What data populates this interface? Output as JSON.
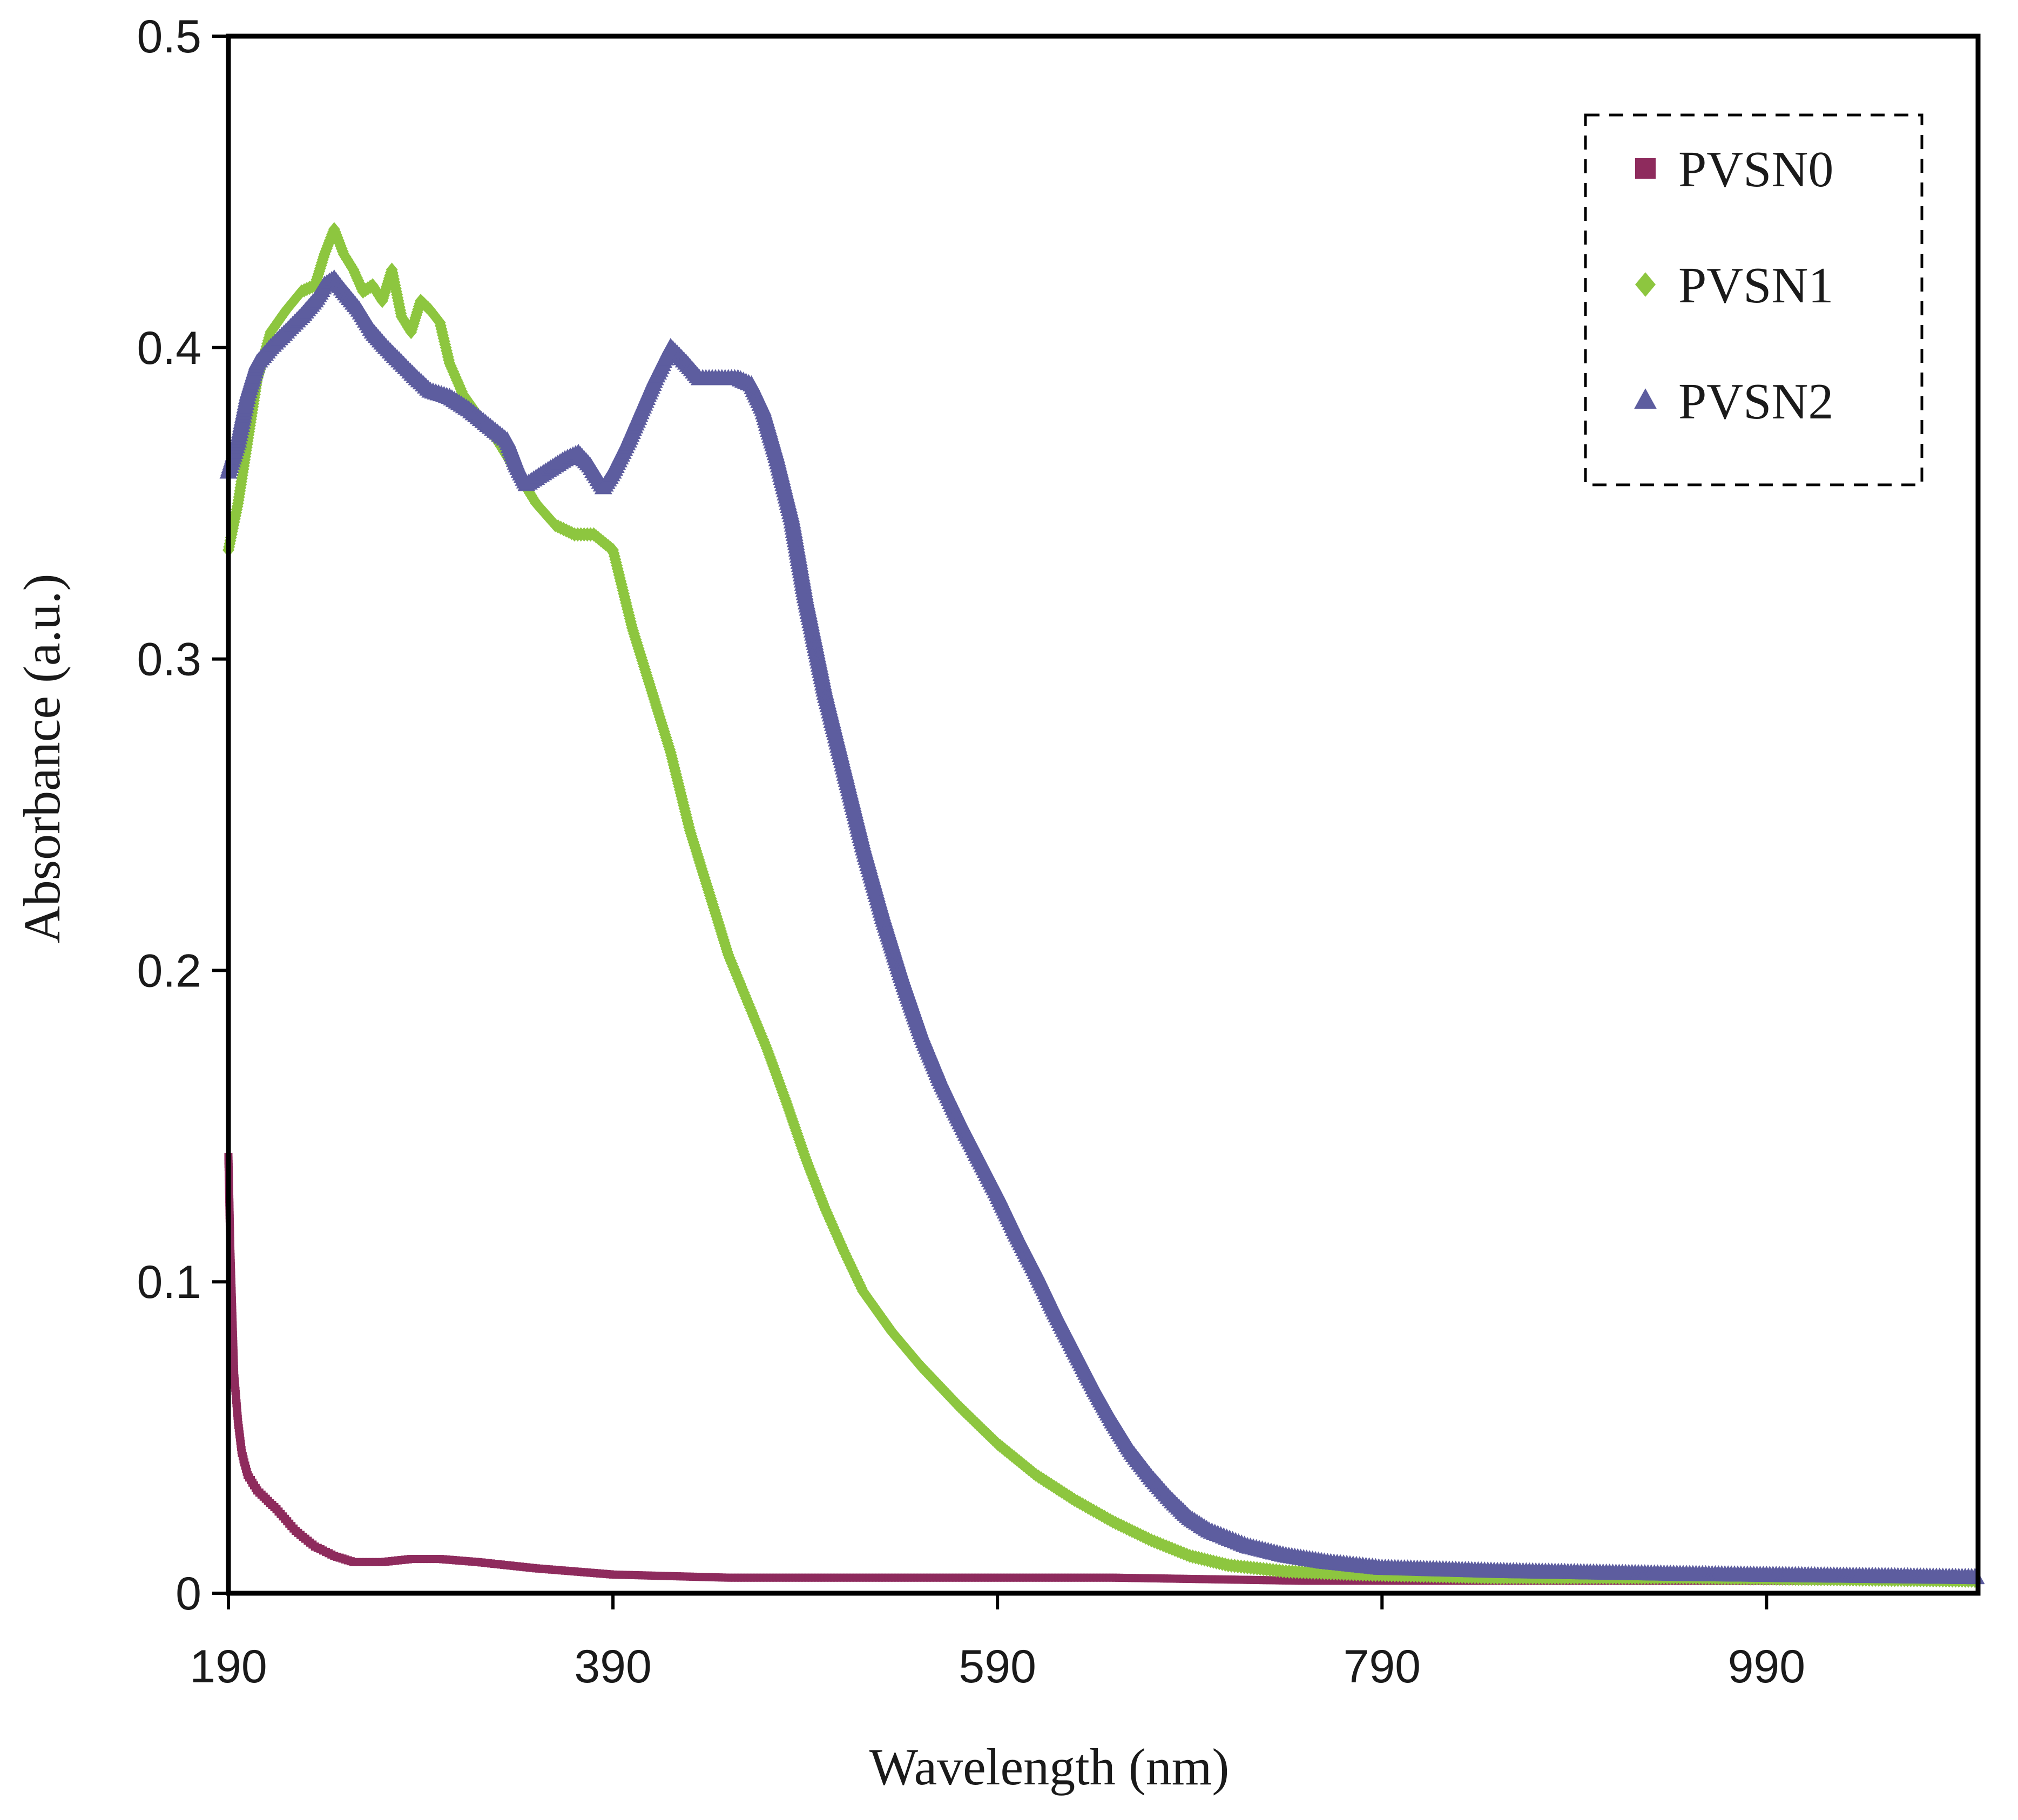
{
  "chart_data": {
    "type": "scatter",
    "title": "",
    "xlabel": "Wavelength (nm)",
    "ylabel": "Absorbance (a.u.)",
    "xlim": [
      190,
      1100
    ],
    "ylim": [
      0,
      0.5
    ],
    "x_ticks": [
      "190",
      "390",
      "590",
      "790",
      "990"
    ],
    "y_ticks": [
      "0",
      "0.1",
      "0.2",
      "0.3",
      "0.4",
      "0.5"
    ],
    "grid": false,
    "legend_position": "top-right",
    "series": [
      {
        "name": "PVSN0",
        "color": "#8e2b5d",
        "marker": "square",
        "points": [
          [
            190,
            0.14
          ],
          [
            191,
            0.11
          ],
          [
            192,
            0.09
          ],
          [
            193,
            0.07
          ],
          [
            195,
            0.055
          ],
          [
            197,
            0.045
          ],
          [
            200,
            0.038
          ],
          [
            205,
            0.033
          ],
          [
            215,
            0.027
          ],
          [
            225,
            0.02
          ],
          [
            235,
            0.015
          ],
          [
            245,
            0.012
          ],
          [
            255,
            0.01
          ],
          [
            270,
            0.01
          ],
          [
            285,
            0.011
          ],
          [
            300,
            0.011
          ],
          [
            320,
            0.01
          ],
          [
            350,
            0.008
          ],
          [
            390,
            0.006
          ],
          [
            450,
            0.005
          ],
          [
            550,
            0.005
          ],
          [
            650,
            0.005
          ],
          [
            750,
            0.004
          ],
          [
            850,
            0.004
          ],
          [
            950,
            0.004
          ],
          [
            1100,
            0.004
          ]
        ]
      },
      {
        "name": "PVSN1",
        "color": "#8dc63f",
        "marker": "diamond",
        "points": [
          [
            190,
            0.335
          ],
          [
            195,
            0.35
          ],
          [
            200,
            0.37
          ],
          [
            205,
            0.39
          ],
          [
            212,
            0.405
          ],
          [
            220,
            0.412
          ],
          [
            228,
            0.418
          ],
          [
            235,
            0.42
          ],
          [
            240,
            0.43
          ],
          [
            245,
            0.438
          ],
          [
            250,
            0.43
          ],
          [
            255,
            0.425
          ],
          [
            260,
            0.418
          ],
          [
            265,
            0.42
          ],
          [
            270,
            0.415
          ],
          [
            275,
            0.425
          ],
          [
            280,
            0.41
          ],
          [
            285,
            0.405
          ],
          [
            290,
            0.415
          ],
          [
            295,
            0.412
          ],
          [
            300,
            0.408
          ],
          [
            305,
            0.395
          ],
          [
            312,
            0.385
          ],
          [
            320,
            0.378
          ],
          [
            330,
            0.37
          ],
          [
            340,
            0.36
          ],
          [
            350,
            0.35
          ],
          [
            360,
            0.343
          ],
          [
            370,
            0.34
          ],
          [
            380,
            0.34
          ],
          [
            390,
            0.335
          ],
          [
            400,
            0.31
          ],
          [
            410,
            0.29
          ],
          [
            420,
            0.27
          ],
          [
            430,
            0.245
          ],
          [
            440,
            0.225
          ],
          [
            450,
            0.205
          ],
          [
            460,
            0.19
          ],
          [
            470,
            0.175
          ],
          [
            480,
            0.158
          ],
          [
            490,
            0.14
          ],
          [
            500,
            0.124
          ],
          [
            510,
            0.11
          ],
          [
            520,
            0.097
          ],
          [
            535,
            0.084
          ],
          [
            550,
            0.073
          ],
          [
            570,
            0.06
          ],
          [
            590,
            0.048
          ],
          [
            610,
            0.038
          ],
          [
            630,
            0.03
          ],
          [
            650,
            0.023
          ],
          [
            670,
            0.017
          ],
          [
            690,
            0.012
          ],
          [
            710,
            0.009
          ],
          [
            740,
            0.007
          ],
          [
            780,
            0.006
          ],
          [
            850,
            0.005
          ],
          [
            950,
            0.005
          ],
          [
            1100,
            0.004
          ]
        ]
      },
      {
        "name": "PVSN2",
        "color": "#5d5d9f",
        "marker": "triangle",
        "points": [
          [
            190,
            0.36
          ],
          [
            195,
            0.37
          ],
          [
            200,
            0.385
          ],
          [
            205,
            0.395
          ],
          [
            212,
            0.4
          ],
          [
            220,
            0.405
          ],
          [
            228,
            0.41
          ],
          [
            235,
            0.415
          ],
          [
            240,
            0.42
          ],
          [
            245,
            0.422
          ],
          [
            250,
            0.418
          ],
          [
            258,
            0.412
          ],
          [
            265,
            0.405
          ],
          [
            272,
            0.4
          ],
          [
            280,
            0.395
          ],
          [
            288,
            0.39
          ],
          [
            295,
            0.386
          ],
          [
            305,
            0.384
          ],
          [
            315,
            0.38
          ],
          [
            325,
            0.375
          ],
          [
            335,
            0.37
          ],
          [
            340,
            0.362
          ],
          [
            345,
            0.356
          ],
          [
            355,
            0.36
          ],
          [
            365,
            0.364
          ],
          [
            372,
            0.366
          ],
          [
            378,
            0.362
          ],
          [
            385,
            0.355
          ],
          [
            390,
            0.36
          ],
          [
            398,
            0.37
          ],
          [
            405,
            0.38
          ],
          [
            412,
            0.39
          ],
          [
            420,
            0.4
          ],
          [
            428,
            0.395
          ],
          [
            435,
            0.39
          ],
          [
            445,
            0.39
          ],
          [
            455,
            0.39
          ],
          [
            462,
            0.388
          ],
          [
            468,
            0.38
          ],
          [
            475,
            0.365
          ],
          [
            483,
            0.345
          ],
          [
            490,
            0.32
          ],
          [
            500,
            0.29
          ],
          [
            510,
            0.265
          ],
          [
            520,
            0.24
          ],
          [
            530,
            0.218
          ],
          [
            540,
            0.198
          ],
          [
            550,
            0.18
          ],
          [
            560,
            0.165
          ],
          [
            570,
            0.152
          ],
          [
            580,
            0.14
          ],
          [
            590,
            0.128
          ],
          [
            600,
            0.115
          ],
          [
            610,
            0.103
          ],
          [
            620,
            0.09
          ],
          [
            630,
            0.078
          ],
          [
            640,
            0.066
          ],
          [
            650,
            0.055
          ],
          [
            660,
            0.045
          ],
          [
            670,
            0.037
          ],
          [
            680,
            0.03
          ],
          [
            690,
            0.024
          ],
          [
            700,
            0.02
          ],
          [
            720,
            0.015
          ],
          [
            740,
            0.012
          ],
          [
            760,
            0.01
          ],
          [
            790,
            0.008
          ],
          [
            850,
            0.007
          ],
          [
            950,
            0.006
          ],
          [
            1100,
            0.005
          ]
        ]
      }
    ]
  }
}
